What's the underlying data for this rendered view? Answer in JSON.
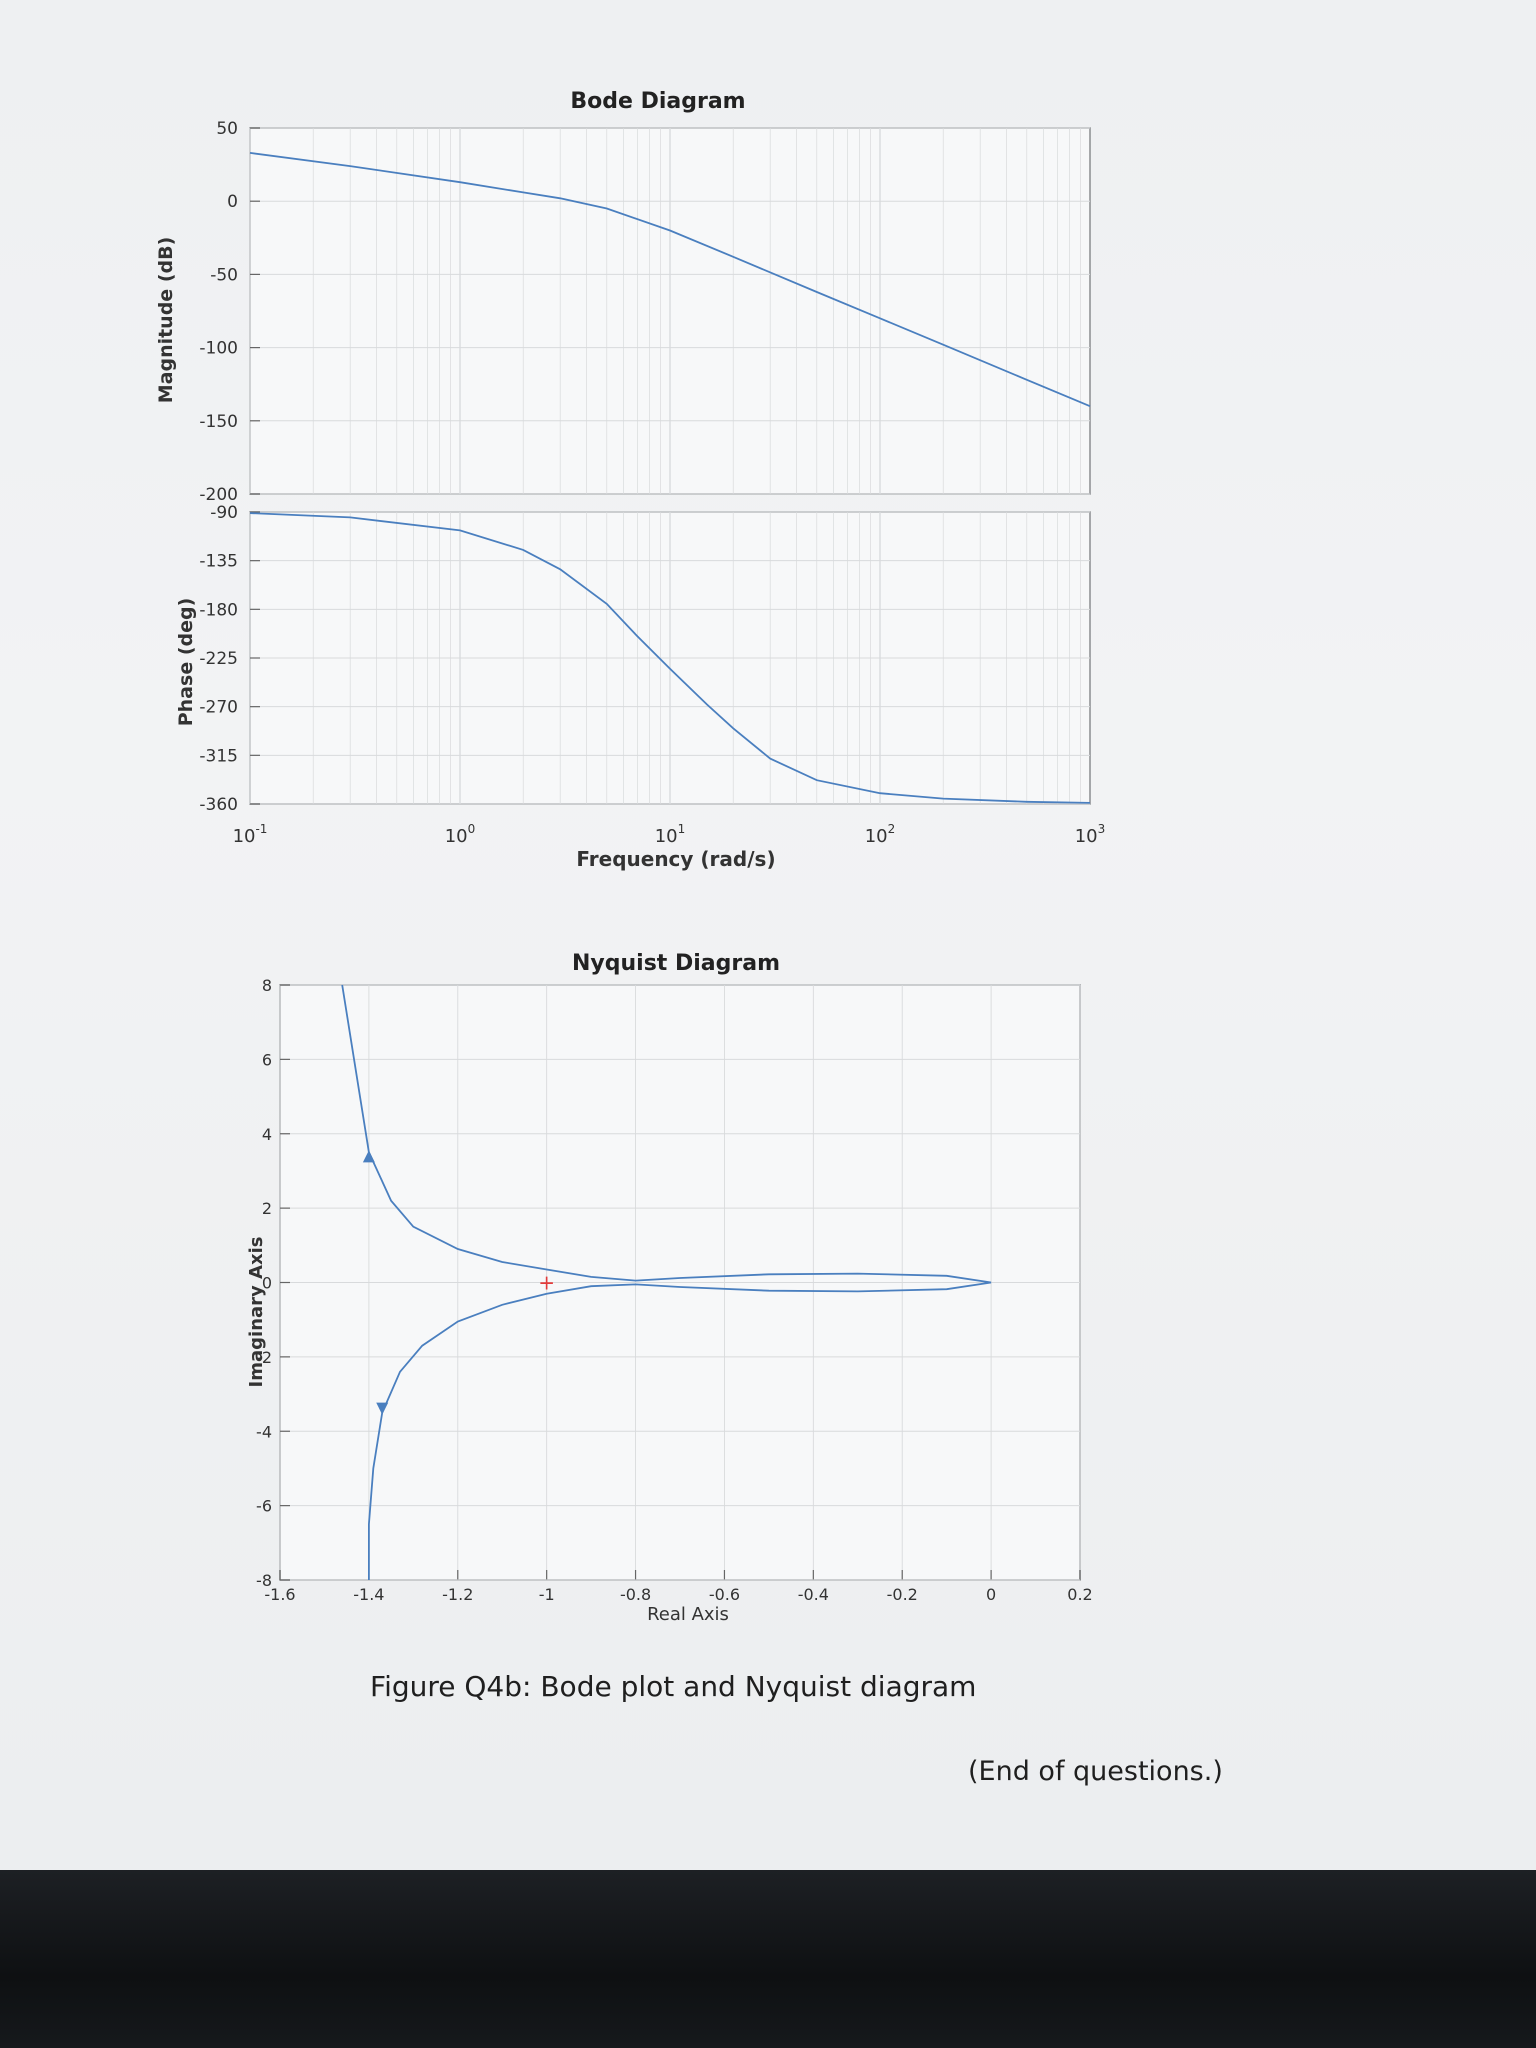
{
  "caption": "Figure Q4b: Bode plot and Nyquist diagram",
  "end_note": "(End of questions.)",
  "colors": {
    "line": "#4a7fbf",
    "grid": "#d8dadc",
    "axis": "#8a8d90",
    "marker": "#e23b3b"
  },
  "chart_data": [
    {
      "type": "line",
      "title": "Bode Diagram",
      "xlabel": "Frequency  (rad/s)",
      "x_scale": "log",
      "xlim": [
        0.1,
        1000
      ],
      "x_ticks": [
        {
          "base": "10",
          "exp": "-1"
        },
        {
          "base": "10",
          "exp": "0"
        },
        {
          "base": "10",
          "exp": "1"
        },
        {
          "base": "10",
          "exp": "2"
        },
        {
          "base": "10",
          "exp": "3"
        }
      ],
      "grid": true,
      "magnitude": {
        "ylabel": "Magnitude (dB)",
        "ylim": [
          -200,
          50
        ],
        "y_ticks": [
          "50",
          "0",
          "-50",
          "-100",
          "-150",
          "-200"
        ],
        "series": [
          {
            "x": [
              0.1,
              0.3,
              1,
              2,
              3,
              5,
              10,
              20,
              50,
              100,
              200,
              500,
              1000
            ],
            "y": [
              33,
              24,
              13,
              6,
              2,
              -5,
              -20,
              -38,
              -62,
              -80,
              -98,
              -122,
              -140
            ]
          }
        ]
      },
      "phase": {
        "ylabel": "Phase (deg)",
        "ylim": [
          -360,
          -90
        ],
        "y_ticks": [
          "-90",
          "-135",
          "-180",
          "-225",
          "-270",
          "-315",
          "-360"
        ],
        "series": [
          {
            "x": [
              0.1,
              0.3,
              1,
              2,
              3,
              5,
              7,
              10,
              15,
              20,
              30,
              50,
              100,
              200,
              500,
              1000
            ],
            "y": [
              -91,
              -95,
              -107,
              -125,
              -143,
              -175,
              -205,
              -235,
              -268,
              -290,
              -318,
              -338,
              -350,
              -355,
              -358,
              -359
            ]
          }
        ]
      }
    },
    {
      "type": "line",
      "title": "Nyquist Diagram",
      "xlabel": "Real Axis",
      "ylabel": "Imaginary Axis",
      "xlim": [
        -1.6,
        0.2
      ],
      "ylim": [
        -8,
        8
      ],
      "x_ticks": [
        "-1.6",
        "-1.4",
        "-1.2",
        "-1",
        "-0.8",
        "-0.6",
        "-0.4",
        "-0.2",
        "0",
        "0.2"
      ],
      "y_ticks": [
        "8",
        "6",
        "4",
        "2",
        "0",
        "-2",
        "-4",
        "-6",
        "-8"
      ],
      "grid": true,
      "marker": {
        "label": "+",
        "x": -1,
        "y": 0
      },
      "series": [
        {
          "x": [
            -1.46,
            -1.44,
            -1.42,
            -1.4,
            -1.35,
            -1.3,
            -1.2,
            -1.1,
            -1.0,
            -0.9,
            -0.8,
            -0.7,
            -0.5,
            -0.3,
            -0.1,
            0.0
          ],
          "y": [
            8.0,
            6.5,
            5.0,
            3.5,
            2.2,
            1.5,
            0.9,
            0.55,
            0.35,
            0.15,
            0.05,
            0.12,
            0.22,
            0.24,
            0.18,
            0.0
          ]
        },
        {
          "x": [
            -1.4,
            -1.4,
            -1.39,
            -1.37,
            -1.33,
            -1.28,
            -1.2,
            -1.1,
            -1.0,
            -0.9,
            -0.8,
            -0.7,
            -0.5,
            -0.3,
            -0.1,
            0.0
          ],
          "y": [
            -8.0,
            -6.5,
            -5.0,
            -3.5,
            -2.4,
            -1.7,
            -1.05,
            -0.6,
            -0.3,
            -0.1,
            -0.05,
            -0.12,
            -0.22,
            -0.24,
            -0.18,
            0.0
          ]
        }
      ]
    }
  ]
}
